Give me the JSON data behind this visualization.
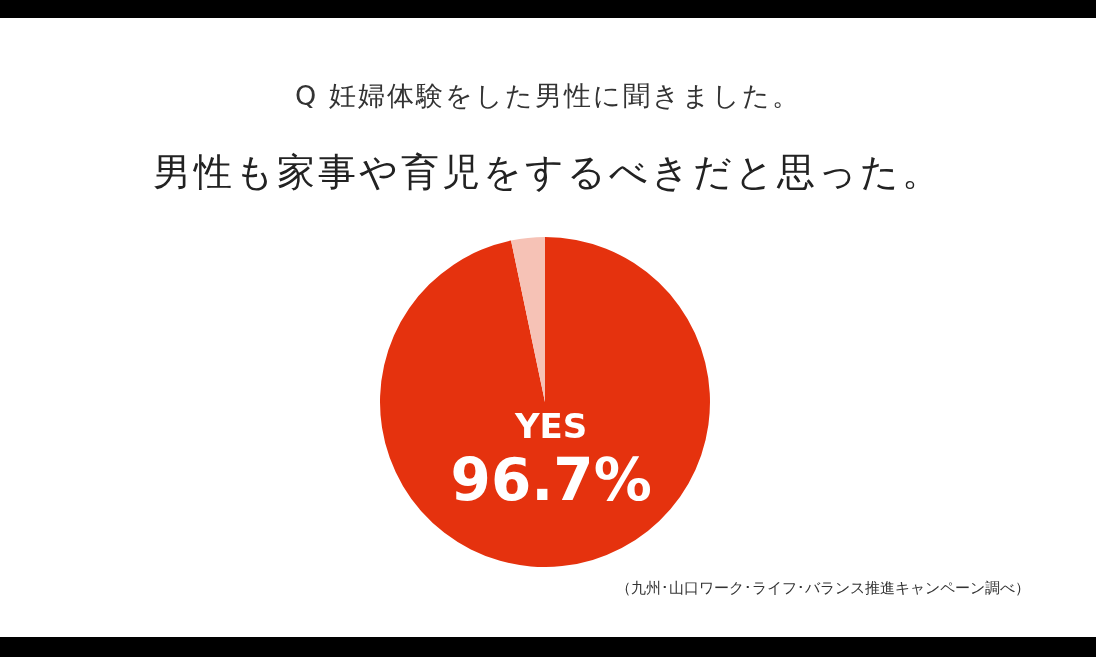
{
  "chart_data": {
    "type": "pie",
    "title": "Q 妊婦体験をした男性に聞きました。",
    "subtitle": "男性も家事や育児をするべきだと思った。",
    "categories": [
      "YES",
      null
    ],
    "values": [
      96.7,
      3.3
    ],
    "colors": [
      "#e5320e",
      "#f6c2b6"
    ],
    "value_labels": [
      "96.7%",
      null
    ],
    "legend": false,
    "annotations": [
      "（九州･山口ワーク･ライフ･バランス推進キャンペーン調べ）"
    ]
  }
}
